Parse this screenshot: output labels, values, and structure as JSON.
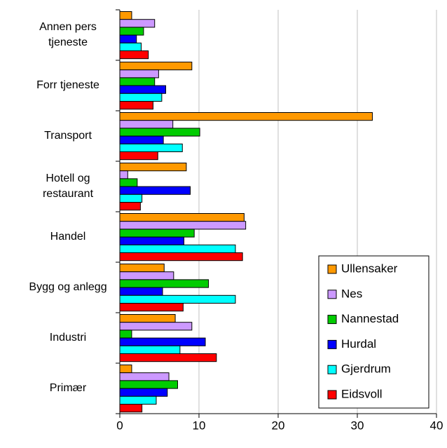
{
  "chart_data": {
    "type": "bar",
    "orientation": "horizontal",
    "categories": [
      "Annen pers tjeneste",
      "Forr tjeneste",
      "Transport",
      "Hotell og restaurant",
      "Handel",
      "Bygg og anlegg",
      "Industri",
      "Primær"
    ],
    "series": [
      {
        "name": "Ullensaker",
        "color": "#ff9900",
        "values": [
          1.5,
          9.1,
          31.9,
          8.4,
          15.7,
          5.6,
          7.0,
          1.5
        ]
      },
      {
        "name": "Nes",
        "color": "#cc99ff",
        "values": [
          4.4,
          4.9,
          6.7,
          1.0,
          15.9,
          6.8,
          9.1,
          6.2
        ]
      },
      {
        "name": "Nannestad",
        "color": "#00cc00",
        "values": [
          3.0,
          4.4,
          10.1,
          2.2,
          9.4,
          11.2,
          1.5,
          7.3
        ]
      },
      {
        "name": "Hurdal",
        "color": "#0000ff",
        "values": [
          2.1,
          5.8,
          5.5,
          8.9,
          8.1,
          5.4,
          10.8,
          6.0
        ]
      },
      {
        "name": "Gjerdrum",
        "color": "#00ffff",
        "values": [
          2.7,
          5.3,
          7.9,
          2.8,
          14.6,
          14.6,
          7.6,
          4.6
        ]
      },
      {
        "name": "Eidsvoll",
        "color": "#ff0000",
        "values": [
          3.6,
          4.2,
          4.8,
          2.6,
          15.5,
          8.0,
          12.2,
          2.8
        ]
      }
    ],
    "xlim": [
      0,
      40
    ],
    "xticks": [
      0,
      10,
      20,
      30,
      40
    ],
    "grid": true,
    "legend": "lower right"
  }
}
